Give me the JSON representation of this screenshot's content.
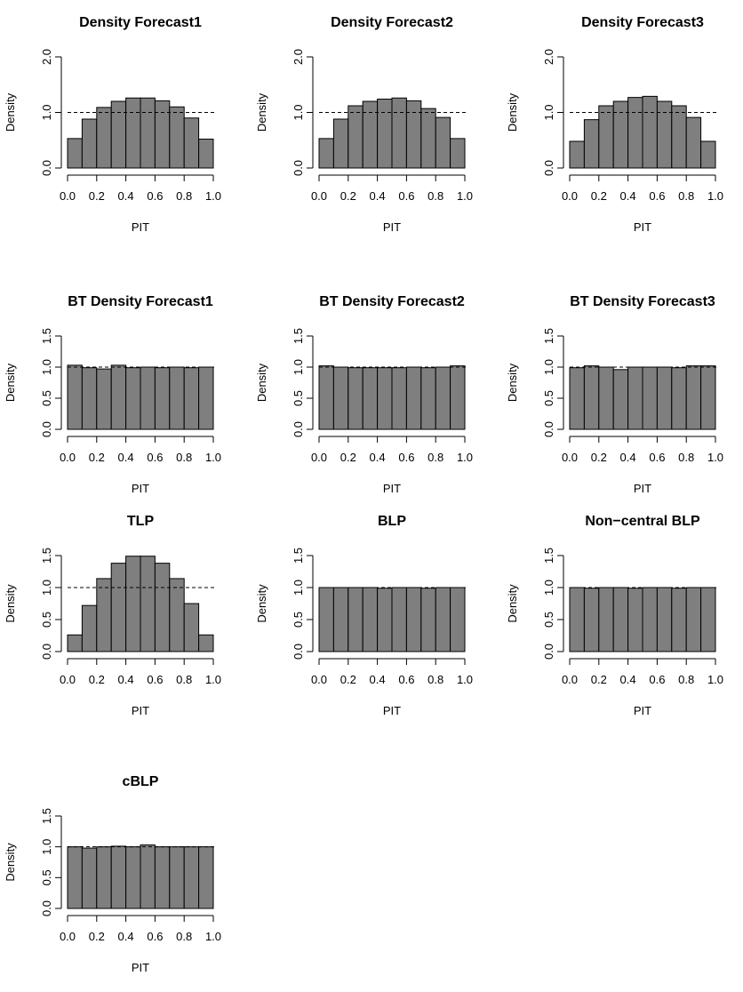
{
  "figure": {
    "xlabel": "PIT",
    "ylabel": "Density",
    "reference_line": 1.0
  },
  "chart_data": [
    {
      "type": "bar",
      "title": "Density Forecast1",
      "xlabel": "PIT",
      "ylabel": "Density",
      "categories": [
        "0.0-0.1",
        "0.1-0.2",
        "0.2-0.3",
        "0.3-0.4",
        "0.4-0.5",
        "0.5-0.6",
        "0.6-0.7",
        "0.7-0.8",
        "0.8-0.9",
        "0.9-1.0"
      ],
      "values": [
        0.53,
        0.88,
        1.09,
        1.2,
        1.26,
        1.26,
        1.21,
        1.1,
        0.9,
        0.52
      ],
      "xlim": [
        0,
        1
      ],
      "ylim": [
        0,
        2
      ],
      "xticks": [
        "0.0",
        "0.2",
        "0.4",
        "0.6",
        "0.8",
        "1.0"
      ],
      "yticks": [
        "0.0",
        "1.0",
        "2.0"
      ],
      "ytick_values": [
        0,
        1,
        2
      ],
      "reference_line": 1.0,
      "grid": false
    },
    {
      "type": "bar",
      "title": "Density Forecast2",
      "xlabel": "PIT",
      "ylabel": "Density",
      "categories": [
        "0.0-0.1",
        "0.1-0.2",
        "0.2-0.3",
        "0.3-0.4",
        "0.4-0.5",
        "0.5-0.6",
        "0.6-0.7",
        "0.7-0.8",
        "0.8-0.9",
        "0.9-1.0"
      ],
      "values": [
        0.53,
        0.88,
        1.12,
        1.2,
        1.24,
        1.26,
        1.21,
        1.07,
        0.91,
        0.53
      ],
      "xlim": [
        0,
        1
      ],
      "ylim": [
        0,
        2
      ],
      "xticks": [
        "0.0",
        "0.2",
        "0.4",
        "0.6",
        "0.8",
        "1.0"
      ],
      "yticks": [
        "0.0",
        "1.0",
        "2.0"
      ],
      "ytick_values": [
        0,
        1,
        2
      ],
      "reference_line": 1.0,
      "grid": false
    },
    {
      "type": "bar",
      "title": "Density Forecast3",
      "xlabel": "PIT",
      "ylabel": "Density",
      "categories": [
        "0.0-0.1",
        "0.1-0.2",
        "0.2-0.3",
        "0.3-0.4",
        "0.4-0.5",
        "0.5-0.6",
        "0.6-0.7",
        "0.7-0.8",
        "0.8-0.9",
        "0.9-1.0"
      ],
      "values": [
        0.48,
        0.87,
        1.12,
        1.2,
        1.27,
        1.29,
        1.2,
        1.12,
        0.91,
        0.48
      ],
      "xlim": [
        0,
        1
      ],
      "ylim": [
        0,
        2
      ],
      "xticks": [
        "0.0",
        "0.2",
        "0.4",
        "0.6",
        "0.8",
        "1.0"
      ],
      "yticks": [
        "0.0",
        "1.0",
        "2.0"
      ],
      "ytick_values": [
        0,
        1,
        2
      ],
      "reference_line": 1.0,
      "grid": false
    },
    {
      "type": "bar",
      "title": "BT Density Forecast1",
      "xlabel": "PIT",
      "ylabel": "Density",
      "categories": [
        "0.0-0.1",
        "0.1-0.2",
        "0.2-0.3",
        "0.3-0.4",
        "0.4-0.5",
        "0.5-0.6",
        "0.6-0.7",
        "0.7-0.8",
        "0.8-0.9",
        "0.9-1.0"
      ],
      "values": [
        1.03,
        0.99,
        0.97,
        1.03,
        0.99,
        1.0,
        0.99,
        1.0,
        0.99,
        1.0
      ],
      "xlim": [
        0,
        1
      ],
      "ylim": [
        0,
        1.5
      ],
      "xticks": [
        "0.0",
        "0.2",
        "0.4",
        "0.6",
        "0.8",
        "1.0"
      ],
      "yticks": [
        "0.0",
        "0.5",
        "1.0",
        "1.5"
      ],
      "ytick_values": [
        0,
        0.5,
        1,
        1.5
      ],
      "reference_line": 1.0,
      "grid": false
    },
    {
      "type": "bar",
      "title": "BT Density Forecast2",
      "xlabel": "PIT",
      "ylabel": "Density",
      "categories": [
        "0.0-0.1",
        "0.1-0.2",
        "0.2-0.3",
        "0.3-0.4",
        "0.4-0.5",
        "0.5-0.6",
        "0.6-0.7",
        "0.7-0.8",
        "0.8-0.9",
        "0.9-1.0"
      ],
      "values": [
        1.02,
        1.0,
        0.99,
        0.99,
        0.99,
        0.99,
        1.0,
        0.99,
        1.0,
        1.02
      ],
      "xlim": [
        0,
        1
      ],
      "ylim": [
        0,
        1.5
      ],
      "xticks": [
        "0.0",
        "0.2",
        "0.4",
        "0.6",
        "0.8",
        "1.0"
      ],
      "yticks": [
        "0.0",
        "0.5",
        "1.0",
        "1.5"
      ],
      "ytick_values": [
        0,
        0.5,
        1,
        1.5
      ],
      "reference_line": 1.0,
      "grid": false
    },
    {
      "type": "bar",
      "title": "BT Density Forecast3",
      "xlabel": "PIT",
      "ylabel": "Density",
      "categories": [
        "0.0-0.1",
        "0.1-0.2",
        "0.2-0.3",
        "0.3-0.4",
        "0.4-0.5",
        "0.5-0.6",
        "0.6-0.7",
        "0.7-0.8",
        "0.8-0.9",
        "0.9-1.0"
      ],
      "values": [
        0.99,
        1.02,
        1.0,
        0.96,
        1.0,
        1.0,
        1.0,
        0.99,
        1.02,
        1.02
      ],
      "xlim": [
        0,
        1
      ],
      "ylim": [
        0,
        1.5
      ],
      "xticks": [
        "0.0",
        "0.2",
        "0.4",
        "0.6",
        "0.8",
        "1.0"
      ],
      "yticks": [
        "0.0",
        "0.5",
        "1.0",
        "1.5"
      ],
      "ytick_values": [
        0,
        0.5,
        1,
        1.5
      ],
      "reference_line": 1.0,
      "grid": false
    },
    {
      "type": "bar",
      "title": "TLP",
      "xlabel": "PIT",
      "ylabel": "Density",
      "categories": [
        "0.0-0.1",
        "0.1-0.2",
        "0.2-0.3",
        "0.3-0.4",
        "0.4-0.5",
        "0.5-0.6",
        "0.6-0.7",
        "0.7-0.8",
        "0.8-0.9",
        "0.9-1.0"
      ],
      "values": [
        0.26,
        0.72,
        1.14,
        1.38,
        1.49,
        1.49,
        1.38,
        1.14,
        0.75,
        0.26
      ],
      "xlim": [
        0,
        1
      ],
      "ylim": [
        0,
        1.5
      ],
      "xticks": [
        "0.0",
        "0.2",
        "0.4",
        "0.6",
        "0.8",
        "1.0"
      ],
      "yticks": [
        "0.0",
        "0.5",
        "1.0",
        "1.5"
      ],
      "ytick_values": [
        0,
        0.5,
        1,
        1.5
      ],
      "reference_line": 1.0,
      "grid": false
    },
    {
      "type": "bar",
      "title": "BLP",
      "xlabel": "PIT",
      "ylabel": "Density",
      "categories": [
        "0.0-0.1",
        "0.1-0.2",
        "0.2-0.3",
        "0.3-0.4",
        "0.4-0.5",
        "0.5-0.6",
        "0.6-0.7",
        "0.7-0.8",
        "0.8-0.9",
        "0.9-1.0"
      ],
      "values": [
        1.0,
        1.0,
        1.0,
        1.0,
        0.99,
        1.0,
        1.0,
        0.99,
        1.0,
        1.0
      ],
      "xlim": [
        0,
        1
      ],
      "ylim": [
        0,
        1.5
      ],
      "xticks": [
        "0.0",
        "0.2",
        "0.4",
        "0.6",
        "0.8",
        "1.0"
      ],
      "yticks": [
        "0.0",
        "0.5",
        "1.0",
        "1.5"
      ],
      "ytick_values": [
        0,
        0.5,
        1,
        1.5
      ],
      "reference_line": 1.0,
      "grid": false
    },
    {
      "type": "bar",
      "title": "Non−central BLP",
      "xlabel": "PIT",
      "ylabel": "Density",
      "categories": [
        "0.0-0.1",
        "0.1-0.2",
        "0.2-0.3",
        "0.3-0.4",
        "0.4-0.5",
        "0.5-0.6",
        "0.6-0.7",
        "0.7-0.8",
        "0.8-0.9",
        "0.9-1.0"
      ],
      "values": [
        1.0,
        0.99,
        1.0,
        1.0,
        0.99,
        1.0,
        1.0,
        0.99,
        1.0,
        1.0
      ],
      "xlim": [
        0,
        1
      ],
      "ylim": [
        0,
        1.5
      ],
      "xticks": [
        "0.0",
        "0.2",
        "0.4",
        "0.6",
        "0.8",
        "1.0"
      ],
      "yticks": [
        "0.0",
        "0.5",
        "1.0",
        "1.5"
      ],
      "ytick_values": [
        0,
        0.5,
        1,
        1.5
      ],
      "reference_line": 1.0,
      "grid": false
    },
    {
      "type": "bar",
      "title": "cBLP",
      "xlabel": "PIT",
      "ylabel": "Density",
      "categories": [
        "0.0-0.1",
        "0.1-0.2",
        "0.2-0.3",
        "0.3-0.4",
        "0.4-0.5",
        "0.5-0.6",
        "0.6-0.7",
        "0.7-0.8",
        "0.8-0.9",
        "0.9-1.0"
      ],
      "values": [
        1.0,
        0.98,
        1.0,
        1.01,
        1.0,
        1.03,
        1.0,
        1.0,
        1.0,
        1.0
      ],
      "xlim": [
        0,
        1
      ],
      "ylim": [
        0,
        1.5
      ],
      "xticks": [
        "0.0",
        "0.2",
        "0.4",
        "0.6",
        "0.8",
        "1.0"
      ],
      "yticks": [
        "0.0",
        "0.5",
        "1.0",
        "1.5"
      ],
      "ytick_values": [
        0,
        0.5,
        1,
        1.5
      ],
      "reference_line": 1.0,
      "grid": false
    }
  ]
}
